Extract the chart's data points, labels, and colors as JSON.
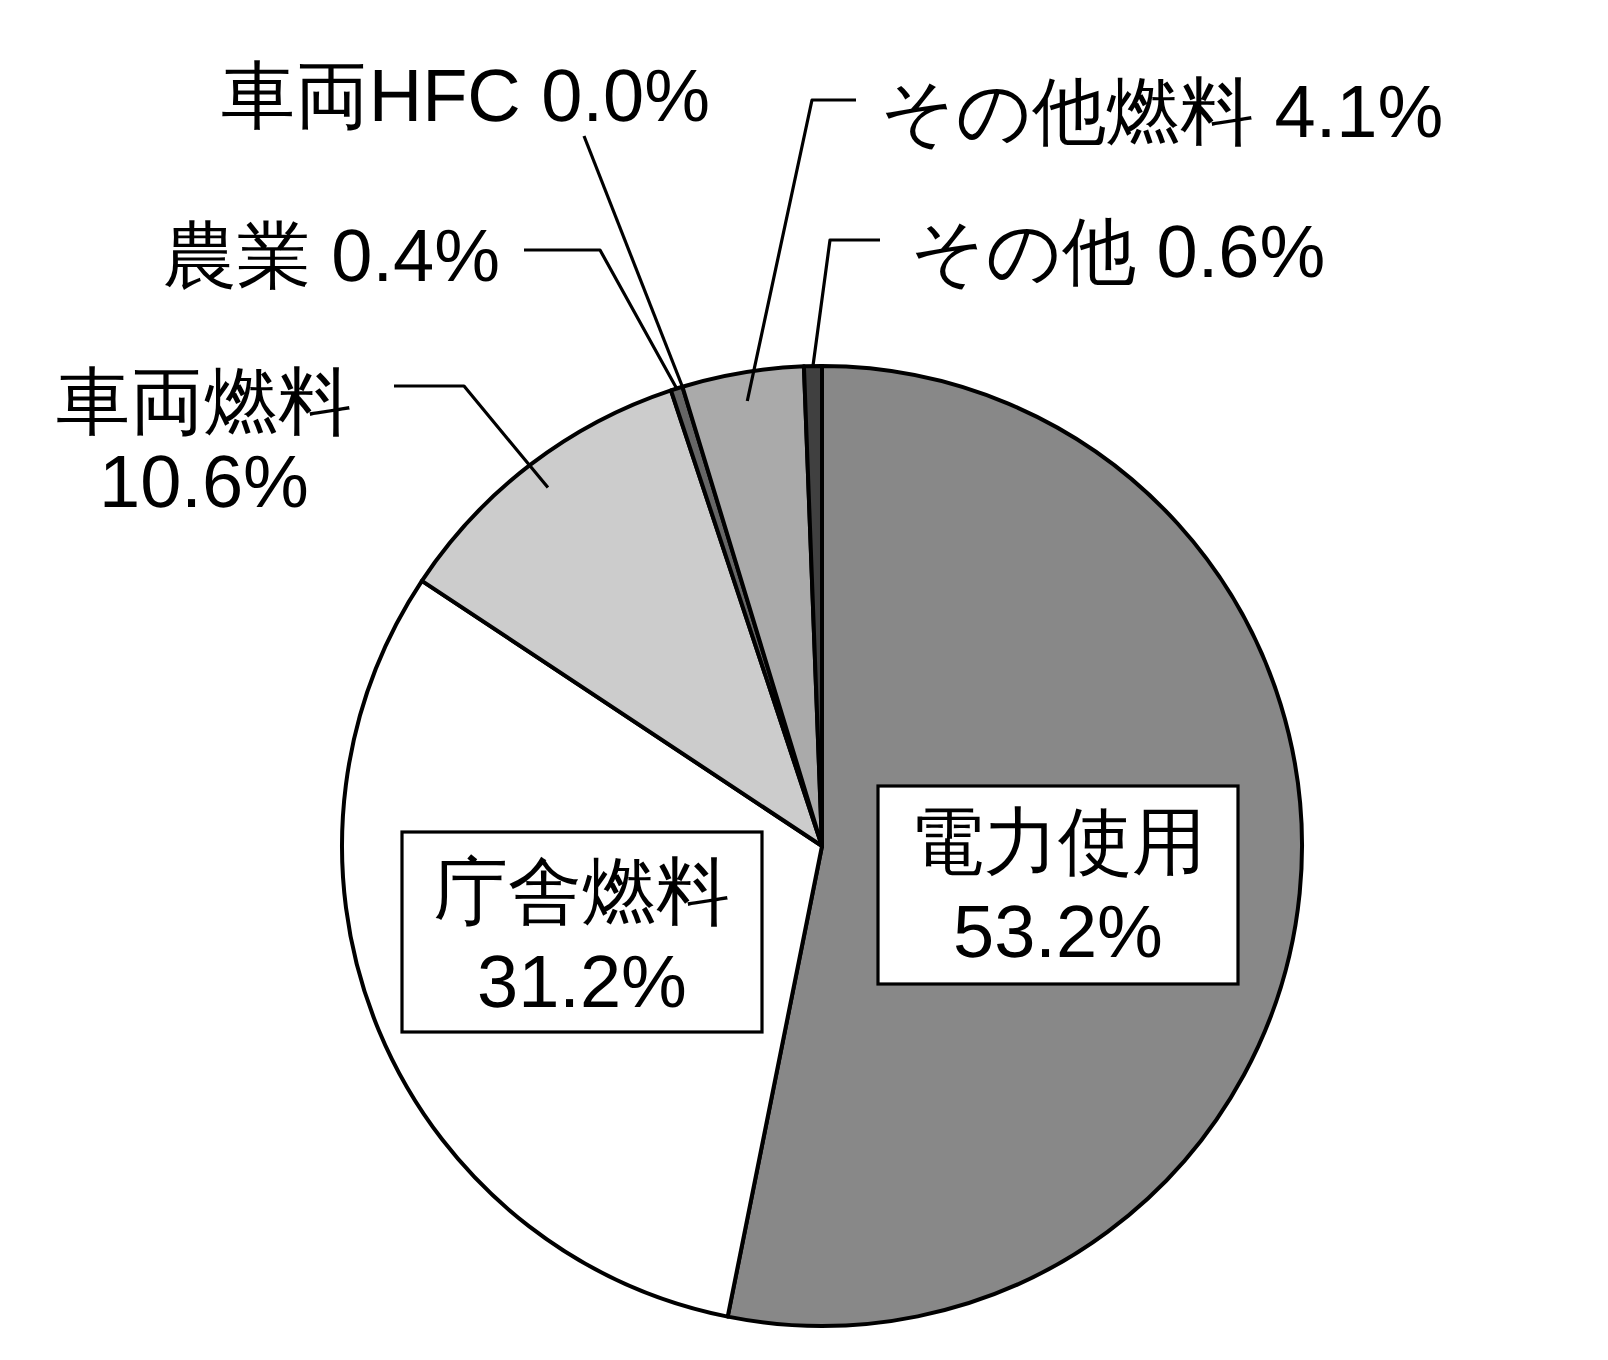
{
  "chart_data": {
    "type": "pie",
    "categories": [
      "電力使用",
      "庁舎燃料",
      "車両燃料",
      "農業",
      "車両HFC",
      "その他燃料",
      "その他"
    ],
    "values": [
      53.2,
      31.2,
      10.6,
      0.4,
      0.0,
      4.1,
      0.6
    ],
    "colors": [
      "#888888",
      "#ffffff",
      "#cccccc",
      "#666666",
      null,
      "#aaaaaa",
      "#404040"
    ],
    "value_labels": [
      "53.2%",
      "31.2%",
      "10.6%",
      "0.4%",
      "0.0%",
      "4.1%",
      "0.6%"
    ]
  }
}
